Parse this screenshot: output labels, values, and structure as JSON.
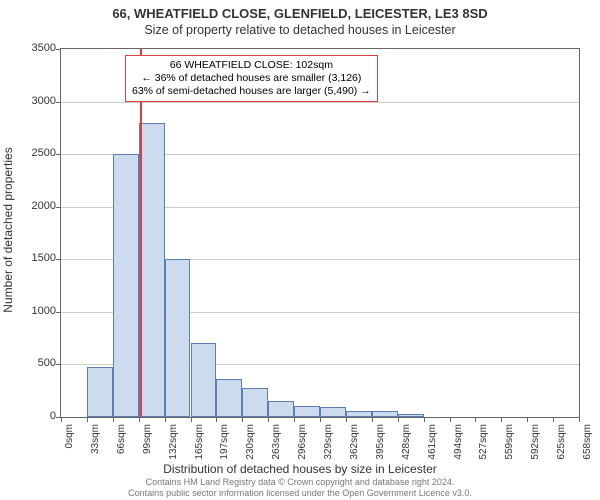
{
  "titles": {
    "address": "66, WHEATFIELD CLOSE, GLENFIELD, LEICESTER, LE3 8SD",
    "subtitle": "Size of property relative to detached houses in Leicester"
  },
  "chart": {
    "type": "histogram",
    "ylabel": "Number of detached properties",
    "xlabel": "Distribution of detached houses by size in Leicester",
    "ylim": [
      0,
      3500
    ],
    "ytick_step": 500,
    "yticks": [
      0,
      500,
      1000,
      1500,
      2000,
      2500,
      3000,
      3500
    ],
    "xtick_labels": [
      "0sqm",
      "33sqm",
      "66sqm",
      "99sqm",
      "132sqm",
      "165sqm",
      "197sqm",
      "230sqm",
      "263sqm",
      "296sqm",
      "329sqm",
      "362sqm",
      "395sqm",
      "428sqm",
      "461sqm",
      "494sqm",
      "527sqm",
      "559sqm",
      "592sqm",
      "625sqm",
      "658sqm"
    ],
    "num_bars": 20,
    "values": [
      0,
      475,
      2500,
      2800,
      1500,
      700,
      360,
      280,
      150,
      105,
      100,
      55,
      55,
      25,
      0,
      0,
      0,
      0,
      0,
      0
    ],
    "bar_fill": "#cddbee",
    "bar_stroke": "#5b7fb0",
    "grid_color": "#cccccc",
    "axis_color": "#666666",
    "background_color": "#ffffff",
    "marker_value_sqm": 102,
    "marker_x_max_sqm": 658,
    "marker_color": "#d94040",
    "label_fontsize": 12,
    "tick_fontsize": 11
  },
  "annotation": {
    "line1": "66 WHEATFIELD CLOSE: 102sqm",
    "line2": "← 36% of detached houses are smaller (3,126)",
    "line3": "63% of semi-detached houses are larger (5,490) →",
    "border_color": "#d94040",
    "background": "#ffffff",
    "fontsize": 10.5
  },
  "footer": {
    "line1": "Contains HM Land Registry data © Crown copyright and database right 2024.",
    "line2": "Contains public sector information licensed under the Open Government Licence v3.0."
  }
}
